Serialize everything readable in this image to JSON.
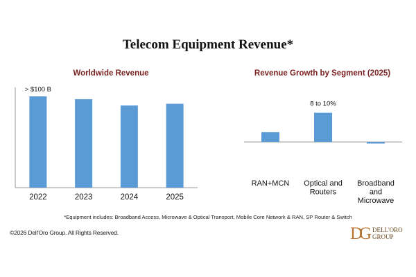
{
  "title": "Telecom Equipment Revenue*",
  "colors": {
    "bar": "#5b9bd5",
    "subtitle": "#7a1f1f",
    "axis": "#9a9a9a"
  },
  "chart_data": [
    {
      "type": "bar",
      "title": "Worldwide Revenue",
      "categories": [
        "2022",
        "2023",
        "2024",
        "2025"
      ],
      "values": [
        100,
        97,
        90,
        92
      ],
      "ylim": [
        0,
        110
      ],
      "annotations": [
        {
          "category": "2022",
          "text": "> $100 B"
        }
      ],
      "grid": false,
      "legend": "none"
    },
    {
      "type": "bar",
      "title": "Revenue Growth by Segment (2025)",
      "categories": [
        "RAN+MCN",
        "Optical and Routers",
        "Broadband and Microwave"
      ],
      "category_lines": [
        [
          "RAN+MCN"
        ],
        [
          "Optical and",
          "Routers"
        ],
        [
          "Broadband",
          "and",
          "Microwave"
        ]
      ],
      "values": [
        3,
        9,
        -0.5
      ],
      "ylim": [
        -1,
        10
      ],
      "annotations": [
        {
          "category": "Optical and Routers",
          "text": "8 to 10%"
        }
      ],
      "grid": false,
      "legend": "none"
    }
  ],
  "footnote": "*Equipment includes: Broadband Access, Microwave & Optical Transport, Mobile Core Network & RAN, SP Router & Switch",
  "copyright": "©2026 Dell'Oro Group. All Rights Reserved.",
  "logo": {
    "mark": "DG",
    "line1": "DELL'ORO",
    "line2": "GROUP"
  }
}
